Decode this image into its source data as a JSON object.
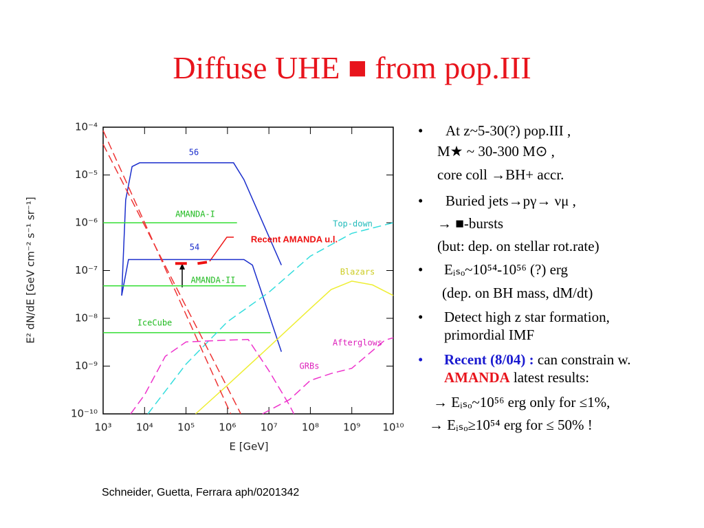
{
  "title": "Diffuse UHE ■ from pop.III",
  "chart_data": {
    "type": "line",
    "log_x": true,
    "log_y": true,
    "xlabel": "E  [GeV]",
    "ylabel": "E² dN/dE  [GeV cm⁻² s⁻¹ sr⁻¹]",
    "xlim": [
      1000,
      10000000000
    ],
    "ylim": [
      1e-10,
      0.0001
    ],
    "xticks": [
      {
        "value": 1000,
        "label": "10³"
      },
      {
        "value": 10000,
        "label": "10⁴"
      },
      {
        "value": 100000,
        "label": "10⁵"
      },
      {
        "value": 1000000,
        "label": "10⁶"
      },
      {
        "value": 10000000,
        "label": "10⁷"
      },
      {
        "value": 100000000,
        "label": "10⁸"
      },
      {
        "value": 1000000000,
        "label": "10⁹"
      },
      {
        "value": 10000000000,
        "label": "10¹⁰"
      }
    ],
    "yticks": [
      {
        "value": 0.0001,
        "label": "10⁻⁴"
      },
      {
        "value": 1e-05,
        "label": "10⁻⁵"
      },
      {
        "value": 1e-06,
        "label": "10⁻⁶"
      },
      {
        "value": 1e-07,
        "label": "10⁻⁷"
      },
      {
        "value": 1e-08,
        "label": "10⁻⁸"
      },
      {
        "value": 1e-09,
        "label": "10⁻⁹"
      },
      {
        "value": 1e-10,
        "label": "10⁻¹⁰"
      }
    ],
    "series": [
      {
        "name": "56",
        "color": "#1a2ecc",
        "dash": false,
        "x": [
          2800,
          3500,
          5000,
          7600,
          1400000,
          2500000,
          20000000
        ],
        "values": [
          3e-08,
          3e-06,
          1.5e-05,
          1.8e-05,
          1.8e-05,
          8e-06,
          1.3e-07
        ]
      },
      {
        "name": "54",
        "color": "#1a2ecc",
        "dash": false,
        "x": [
          2800,
          4100,
          2500000,
          4000000,
          20000000
        ],
        "values": [
          3e-08,
          1.7e-07,
          1.7e-07,
          1.3e-07,
          2e-09
        ]
      },
      {
        "name": "AMANDA-I",
        "color": "#33dd33",
        "dash": false,
        "x": [
          1000,
          1700000
        ],
        "values": [
          1e-06,
          1e-06
        ]
      },
      {
        "name": "AMANDA-II",
        "color": "#33dd33",
        "dash": false,
        "x": [
          1000,
          2800000
        ],
        "values": [
          4.8e-08,
          4.8e-08
        ]
      },
      {
        "name": "IceCube",
        "color": "#33dd33",
        "dash": false,
        "x": [
          1000,
          11000000
        ],
        "values": [
          5e-09,
          5e-09
        ]
      },
      {
        "name": "Top-down",
        "color": "#33dddd",
        "dash": true,
        "x": [
          12000,
          100000,
          1000000,
          10000000,
          100000000,
          1000000000,
          10000000000
        ],
        "values": [
          1e-10,
          1.1e-09,
          8.5e-09,
          3.5e-08,
          2e-07,
          6e-07,
          1e-06
        ]
      },
      {
        "name": "Blazars",
        "color": "#eeee33",
        "dash": false,
        "x": [
          170000,
          1000000,
          10000000,
          100000000,
          316000000,
          1000000000,
          3160000000,
          10000000000
        ],
        "values": [
          1e-10,
          4e-10,
          2.5e-09,
          1.6e-08,
          4e-08,
          6e-08,
          5e-08,
          3e-08
        ]
      },
      {
        "name": "Afterglows",
        "color": "#ee33cc",
        "dash": true,
        "x": [
          7000000,
          31600000,
          100000000,
          316000000,
          1000000000,
          6300000000,
          10000000000
        ],
        "values": [
          1e-10,
          2e-10,
          5e-10,
          7e-10,
          9e-10,
          3.5e-09,
          3.9e-09
        ]
      },
      {
        "name": "GRBs",
        "color": "#ee33cc",
        "dash": true,
        "x": [
          4600,
          10000,
          31600,
          100000,
          1000000,
          3160000,
          10000000,
          31600000,
          40000000
        ],
        "values": [
          1e-10,
          2.5e-10,
          1.6e-09,
          3.2e-09,
          3.5e-09,
          3.6e-09,
          8e-10,
          1.5e-10,
          1e-10
        ]
      },
      {
        "color": "#ee3333",
        "dash": true,
        "x": [
          1000,
          1200000
        ],
        "values": [
          8.5e-05,
          1e-10
        ]
      },
      {
        "color": "#ee3333",
        "dash": true,
        "x": [
          1000,
          2100000
        ],
        "values": [
          4.4e-05,
          1e-10
        ]
      },
      {
        "name": "Recent AMANDA  u.l.",
        "color": "#ee1111",
        "dash": false,
        "thick": true,
        "x": [
          55000,
          105000,
          150000,
          190000,
          320000
        ],
        "values": [
          1.4e-07,
          1.4e-07,
          null,
          1.4e-07,
          1.5e-07
        ]
      }
    ]
  },
  "bullets": [
    "At z~5-30(?) pop.III ,",
    "M★ ~ 30-300 M⊙ ,",
    "core coll →BH+ accr.",
    "Buried jets→pγ→ νμ  ,",
    "→ ■-bursts",
    "(but: dep. on stellar rot.rate)",
    "Eᵢₛₒ~10⁵⁴-10⁵⁶ (?) erg",
    "(dep. on BH mass, dM/dt)",
    "Detect high z star formation,",
    "primordial IMF"
  ],
  "recent": {
    "label": "Recent (8/04) :",
    "text": " can constrain w.",
    "amanda": "AMANDA",
    "text2": " latest results:"
  },
  "results": [
    "→ Eᵢₛₒ~10⁵⁶ erg only for ≤1%,",
    "→ Eᵢₛₒ≥10⁵⁴ erg for ≤ 50% !"
  ],
  "citation": "Schneider, Guetta, Ferrara aph/0201342"
}
